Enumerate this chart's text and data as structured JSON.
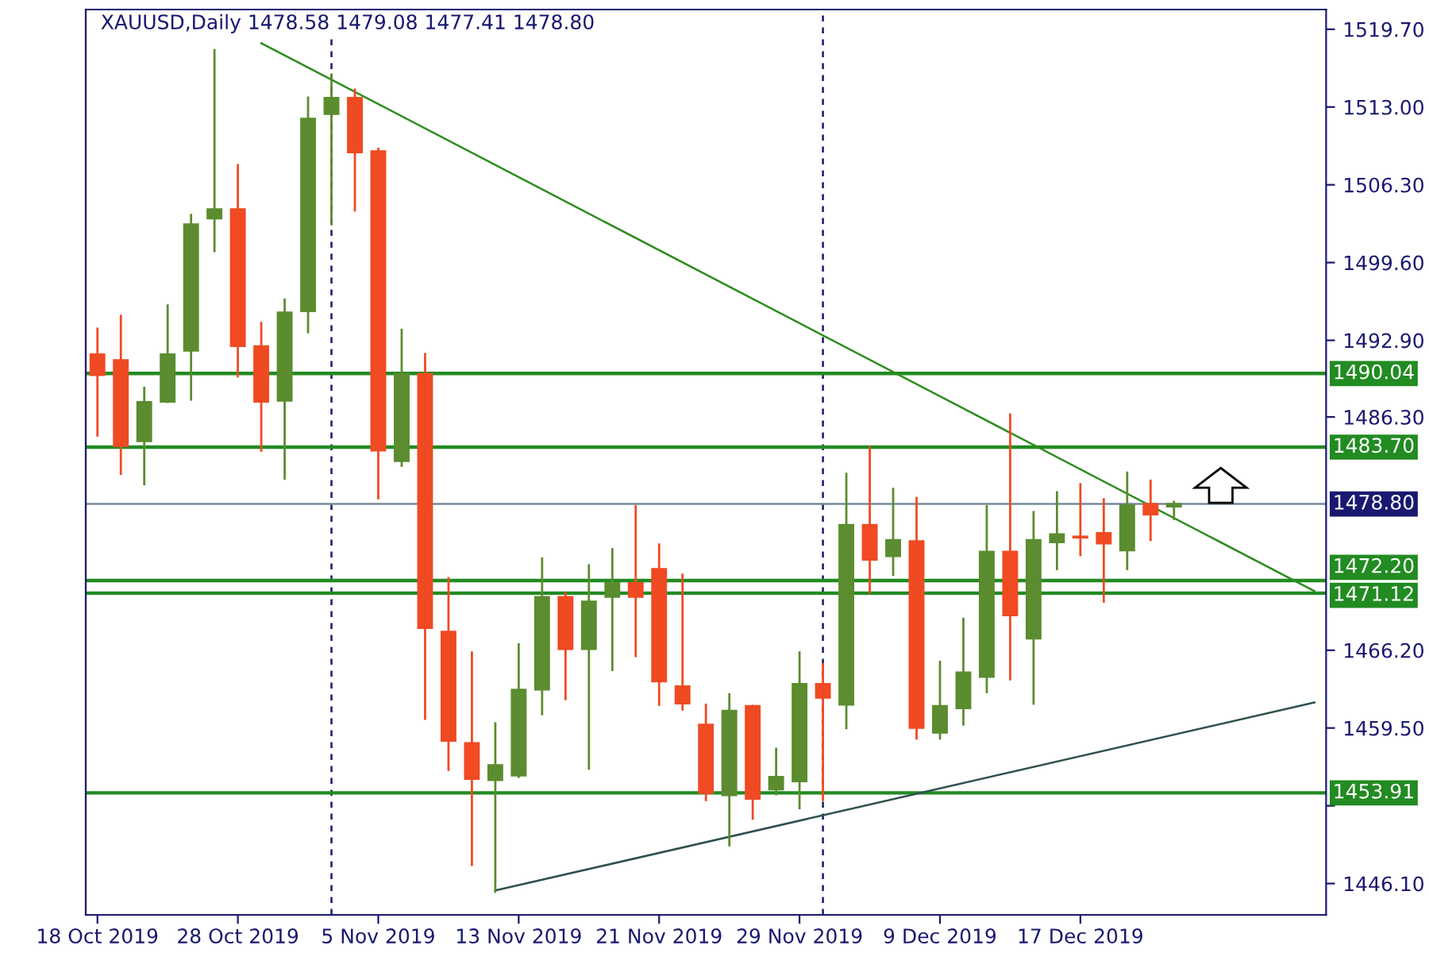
{
  "chart_data": {
    "type": "candlestick",
    "title": "XAUUSD,Daily 1478.58 1479.08 1477.41 1478.80",
    "categories": [
      "18 Oct 2019",
      null,
      null,
      null,
      null,
      null,
      "28 Oct 2019",
      null,
      null,
      null,
      null,
      null,
      "5 Nov 2019",
      null,
      null,
      null,
      null,
      null,
      "13 Nov 2019",
      null,
      null,
      null,
      null,
      null,
      "21 Nov 2019",
      null,
      null,
      null,
      null,
      null,
      "29 Nov 2019",
      null,
      null,
      null,
      null,
      null,
      "9 Dec 2019",
      null,
      null,
      null,
      null,
      null,
      "17 Dec 2019",
      null,
      null,
      null,
      null,
      null,
      null,
      null,
      null,
      null,
      null
    ],
    "ohlc": [
      [
        1491.7,
        1494.0,
        1484.6,
        1489.9
      ],
      [
        1491.2,
        1495.1,
        1481.3,
        1483.8
      ],
      [
        1484.2,
        1488.9,
        1480.4,
        1487.6
      ],
      [
        1487.6,
        1496.0,
        1487.5,
        1491.7
      ],
      [
        1492.0,
        1503.8,
        1487.7,
        1502.9
      ],
      [
        1503.4,
        1518.0,
        1500.5,
        1504.2
      ],
      [
        1504.2,
        1508.1,
        1489.7,
        1492.4
      ],
      [
        1492.4,
        1494.5,
        1483.3,
        1487.6
      ],
      [
        1487.7,
        1496.5,
        1480.9,
        1495.3
      ],
      [
        1495.4,
        1513.9,
        1493.5,
        1512.0
      ],
      [
        1512.4,
        1515.9,
        1502.8,
        1513.8
      ],
      [
        1513.8,
        1514.6,
        1504.0,
        1509.1
      ],
      [
        1509.2,
        1509.5,
        1479.2,
        1483.4
      ],
      [
        1482.5,
        1493.9,
        1482.0,
        1490.0
      ],
      [
        1490.0,
        1491.8,
        1460.2,
        1468.1
      ],
      [
        1467.8,
        1472.5,
        1455.8,
        1458.4
      ],
      [
        1458.2,
        1466.1,
        1447.6,
        1455.1
      ],
      [
        1455.0,
        1460.0,
        1445.3,
        1456.3
      ],
      [
        1455.4,
        1466.8,
        1455.2,
        1462.8
      ],
      [
        1462.8,
        1474.2,
        1460.6,
        1470.8
      ],
      [
        1470.8,
        1471.2,
        1461.9,
        1466.3
      ],
      [
        1466.3,
        1473.6,
        1455.9,
        1470.4
      ],
      [
        1470.8,
        1475.0,
        1464.4,
        1472.0
      ],
      [
        1472.0,
        1478.7,
        1465.6,
        1470.8
      ],
      [
        1473.2,
        1475.4,
        1461.4,
        1463.5
      ],
      [
        1463.1,
        1472.8,
        1461.0,
        1461.6
      ],
      [
        1459.8,
        1461.6,
        1453.2,
        1453.9
      ],
      [
        1453.7,
        1462.5,
        1449.3,
        1461.0
      ],
      [
        1461.4,
        1461.5,
        1451.6,
        1453.4
      ],
      [
        1454.2,
        1457.8,
        1453.7,
        1455.3
      ],
      [
        1454.9,
        1466.1,
        1452.5,
        1463.3
      ],
      [
        1463.3,
        1465.1,
        1453.2,
        1462.1
      ],
      [
        1461.5,
        1481.5,
        1459.4,
        1477.0
      ],
      [
        1477.0,
        1483.8,
        1471.1,
        1474.0
      ],
      [
        1474.3,
        1480.2,
        1472.6,
        1475.7
      ],
      [
        1475.6,
        1479.4,
        1458.5,
        1459.5
      ],
      [
        1459.1,
        1465.3,
        1458.5,
        1461.4
      ],
      [
        1461.2,
        1469.0,
        1459.7,
        1464.3
      ],
      [
        1463.9,
        1478.7,
        1462.5,
        1474.7
      ],
      [
        1474.7,
        1486.6,
        1463.6,
        1469.2
      ],
      [
        1467.2,
        1478.2,
        1461.5,
        1475.7
      ],
      [
        1475.5,
        1479.9,
        1473.1,
        1476.2
      ],
      [
        1476.0,
        1480.6,
        1474.3,
        1475.9
      ],
      [
        1476.3,
        1479.3,
        1470.3,
        1475.4
      ],
      [
        1474.8,
        1481.6,
        1473.1,
        1478.7
      ],
      [
        1478.8,
        1480.9,
        1475.6,
        1477.9
      ],
      [
        1478.58,
        1479.08,
        1477.41,
        1478.8
      ],
      null,
      null,
      null,
      null,
      null,
      null
    ],
    "colors": [
      "#f04a23",
      "#f04a23",
      "#5b8c2f",
      "#5b8c2f",
      "#5b8c2f",
      "#5b8c2f",
      "#f04a23",
      "#f04a23",
      "#5b8c2f",
      "#5b8c2f",
      "#5b8c2f",
      "#f04a23",
      "#f04a23",
      "#5b8c2f",
      "#f04a23",
      "#f04a23",
      "#f04a23",
      "#5b8c2f",
      "#5b8c2f",
      "#5b8c2f",
      "#f04a23",
      "#5b8c2f",
      "#5b8c2f",
      "#f04a23",
      "#f04a23",
      "#f04a23",
      "#f04a23",
      "#5b8c2f",
      "#f04a23",
      "#5b8c2f",
      "#5b8c2f",
      "#f04a23",
      "#5b8c2f",
      "#f04a23",
      "#5b8c2f",
      "#f04a23",
      "#5b8c2f",
      "#5b8c2f",
      "#5b8c2f",
      "#f04a23",
      "#5b8c2f",
      "#5b8c2f",
      "#f04a23",
      "#f04a23",
      "#5b8c2f",
      "#f04a23",
      "#5b8c2f",
      null,
      null,
      null,
      null,
      null,
      null
    ],
    "series": [
      {
        "type": "line",
        "color": "#2e8b1f",
        "values": [
          null,
          null,
          null,
          null,
          null,
          null,
          null,
          1518.5,
          null,
          null,
          null,
          null,
          null,
          null,
          null,
          null,
          null,
          null,
          null,
          null,
          null,
          null,
          null,
          null,
          null,
          null,
          null,
          null,
          null,
          null,
          null,
          null,
          null,
          null,
          null,
          null,
          null,
          null,
          null,
          null,
          null,
          null,
          null,
          null,
          null,
          null,
          null,
          null,
          null,
          null,
          null,
          null,
          1471.3
        ]
      },
      {
        "type": "line",
        "color": "#2f4f4f",
        "values": [
          null,
          null,
          null,
          null,
          null,
          null,
          null,
          null,
          null,
          null,
          null,
          null,
          null,
          null,
          null,
          null,
          null,
          1445.5,
          null,
          null,
          null,
          null,
          null,
          null,
          null,
          null,
          null,
          null,
          null,
          null,
          null,
          null,
          null,
          null,
          null,
          null,
          null,
          null,
          null,
          null,
          null,
          null,
          null,
          null,
          null,
          null,
          null,
          null,
          null,
          null,
          null,
          null,
          1461.7
        ]
      }
    ],
    "ylim": [
      1443.4,
      1521.4
    ],
    "yticks": [
      {
        "value": 1519.7,
        "label": "1519.70"
      },
      {
        "value": 1513.0,
        "label": "1513.00"
      },
      {
        "value": 1506.3,
        "label": "1506.30"
      },
      {
        "value": 1499.6,
        "label": "1499.60"
      },
      {
        "value": 1492.9,
        "label": "1492.90"
      },
      {
        "value": 1486.3,
        "label": "1486.30"
      },
      {
        "value": 1466.2,
        "label": "1466.20"
      },
      {
        "value": 1459.5,
        "label": "1459.50"
      },
      {
        "value": 1452.8,
        "label": null
      },
      {
        "value": 1446.1,
        "label": "1446.10"
      }
    ],
    "ref_lines": [
      {
        "axis": "y",
        "value": 1490.04,
        "label": "1490.04",
        "color": "#228b22"
      },
      {
        "axis": "y",
        "value": 1483.7,
        "label": "1483.70",
        "color": "#228b22"
      },
      {
        "axis": "y",
        "value": 1478.8,
        "label": "1478.80",
        "color": "#778899"
      },
      {
        "axis": "y",
        "value": 1472.2,
        "label": "1472.20",
        "color": "#228b22"
      },
      {
        "axis": "y",
        "value": 1471.12,
        "label": "1471.12",
        "color": "#228b22"
      },
      {
        "axis": "y",
        "value": 1453.91,
        "label": "1453.91",
        "color": "#228b22"
      }
    ]
  }
}
